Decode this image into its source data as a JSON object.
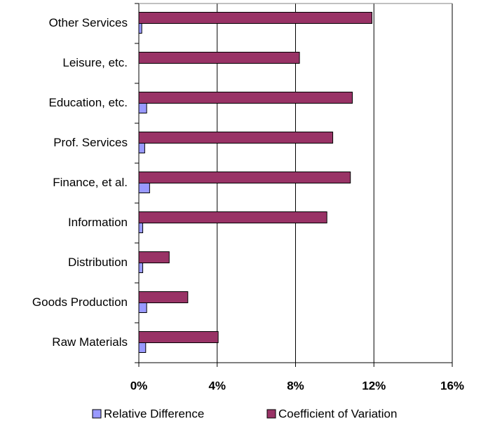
{
  "chart_data": {
    "type": "hbar",
    "categories": [
      "Other Services",
      "Leisure, etc.",
      "Education, etc.",
      "Prof. Services",
      "Finance, et al.",
      "Information",
      "Distribution",
      "Goods Production",
      "Raw Materials"
    ],
    "series": [
      {
        "name": "Coefficient of Variation",
        "color": "#993366",
        "values": [
          11.9,
          8.2,
          10.9,
          9.9,
          10.8,
          9.6,
          1.55,
          2.5,
          4.05
        ]
      },
      {
        "name": "Relative Difference",
        "color": "#9999ff",
        "values": [
          0.15,
          0,
          0.4,
          0.3,
          0.55,
          0.2,
          0.2,
          0.4,
          0.35
        ]
      }
    ],
    "xlim": [
      0,
      16
    ],
    "xticks": [
      {
        "value": 0,
        "label": "0%"
      },
      {
        "value": 4,
        "label": "4%"
      },
      {
        "value": 8,
        "label": "8%"
      },
      {
        "value": 12,
        "label": "12%"
      },
      {
        "value": 16,
        "label": "16%"
      }
    ],
    "grid": true
  }
}
